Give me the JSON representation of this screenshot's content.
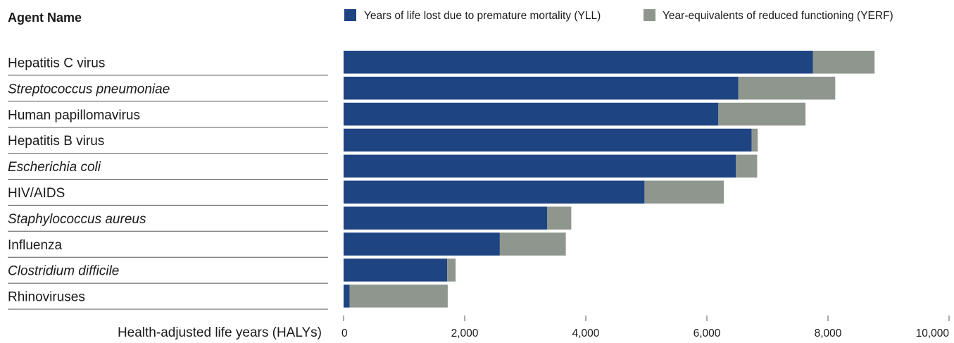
{
  "chart_data": {
    "type": "bar",
    "orientation": "horizontal",
    "stacked": true,
    "category_header": "Agent Name",
    "categories": [
      "Hepatitis C virus",
      "Streptococcus pneumoniae",
      "Human papillomavirus",
      "Hepatitis B virus",
      "Escherichia coli",
      "HIV/AIDS",
      "Staphylococcus aureus",
      "Influenza",
      "Clostridium difficile",
      "Rhinoviruses"
    ],
    "italic_categories": [
      "Streptococcus pneumoniae",
      "Escherichia coli",
      "Staphylococcus aureus",
      "Clostridium difficile"
    ],
    "series": [
      {
        "name": "Years of life lost due to premature mortality (YLL)",
        "color": "#1f4482",
        "values": [
          7750,
          6520,
          6190,
          6740,
          6480,
          4970,
          3360,
          2580,
          1710,
          100
        ]
      },
      {
        "name": "Year-equivalents of reduced functioning (YERF)",
        "color": "#8e968d",
        "values": [
          1020,
          1600,
          1440,
          100,
          350,
          1310,
          400,
          1090,
          140,
          1620
        ]
      }
    ],
    "xlabel": "Health-adjusted life years (HALYs)",
    "xlim": [
      0,
      10000
    ],
    "xticks": [
      0,
      2000,
      4000,
      6000,
      8000,
      10000
    ],
    "xtick_labels": [
      "0",
      "2,000",
      "4,000",
      "6,000",
      "8,000",
      "10,000"
    ],
    "legend_position": "top",
    "grid": false
  }
}
